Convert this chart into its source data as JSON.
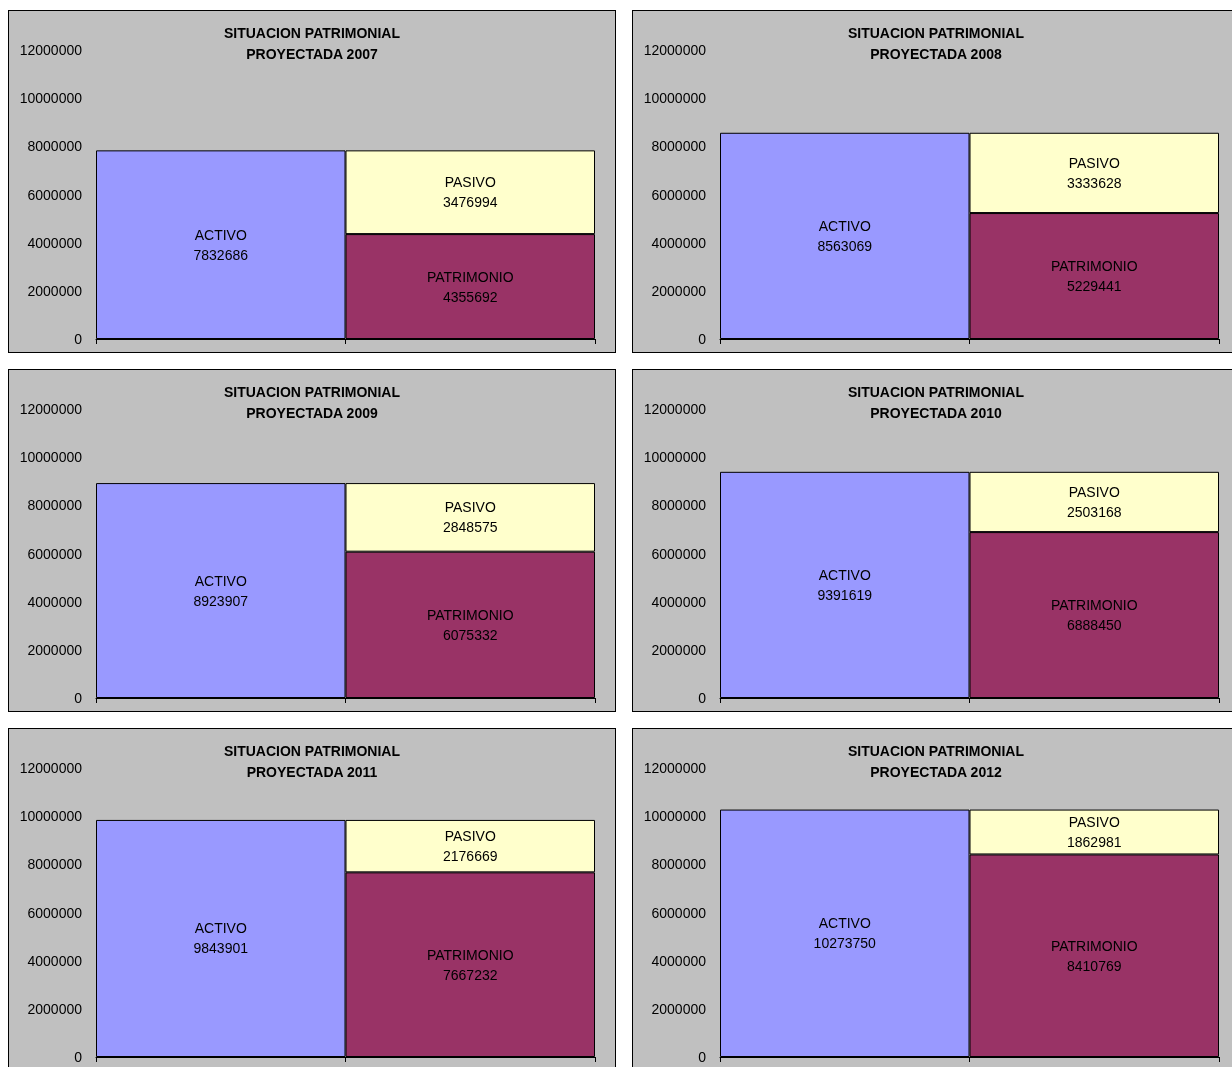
{
  "chart_data": [
    {
      "type": "bar",
      "title": "SITUACION PATRIMONIAL\nPROYECTADA 2007",
      "categories": [
        null,
        null
      ],
      "stacked": true,
      "data_labels": true,
      "grid": false,
      "legend": false,
      "ylim": [
        0,
        12000000
      ],
      "yticks": [
        0,
        2000000,
        4000000,
        6000000,
        8000000,
        10000000,
        12000000
      ],
      "series": [
        {
          "name": "ACTIVO",
          "color": "#9999ff",
          "values": [
            7832686,
            null
          ]
        },
        {
          "name": "PATRIMONIO",
          "color": "#993366",
          "values": [
            null,
            4355692
          ]
        },
        {
          "name": "PASIVO",
          "color": "#ffffcc",
          "values": [
            null,
            3476994
          ]
        }
      ]
    },
    {
      "type": "bar",
      "title": "SITUACION PATRIMONIAL\nPROYECTADA 2008",
      "categories": [
        null,
        null
      ],
      "stacked": true,
      "data_labels": true,
      "grid": false,
      "legend": false,
      "ylim": [
        0,
        12000000
      ],
      "yticks": [
        0,
        2000000,
        4000000,
        6000000,
        8000000,
        10000000,
        12000000
      ],
      "series": [
        {
          "name": "ACTIVO",
          "color": "#9999ff",
          "values": [
            8563069,
            null
          ]
        },
        {
          "name": "PATRIMONIO",
          "color": "#993366",
          "values": [
            null,
            5229441
          ]
        },
        {
          "name": "PASIVO",
          "color": "#ffffcc",
          "values": [
            null,
            3333628
          ]
        }
      ]
    },
    {
      "type": "bar",
      "title": "SITUACION PATRIMONIAL\nPROYECTADA 2009",
      "categories": [
        null,
        null
      ],
      "stacked": true,
      "data_labels": true,
      "grid": false,
      "legend": false,
      "ylim": [
        0,
        12000000
      ],
      "yticks": [
        0,
        2000000,
        4000000,
        6000000,
        8000000,
        10000000,
        12000000
      ],
      "series": [
        {
          "name": "ACTIVO",
          "color": "#9999ff",
          "values": [
            8923907,
            null
          ]
        },
        {
          "name": "PATRIMONIO",
          "color": "#993366",
          "values": [
            null,
            6075332
          ]
        },
        {
          "name": "PASIVO",
          "color": "#ffffcc",
          "values": [
            null,
            2848575
          ]
        }
      ]
    },
    {
      "type": "bar",
      "title": "SITUACION PATRIMONIAL\nPROYECTADA 2010",
      "categories": [
        null,
        null
      ],
      "stacked": true,
      "data_labels": true,
      "grid": false,
      "legend": false,
      "ylim": [
        0,
        12000000
      ],
      "yticks": [
        0,
        2000000,
        4000000,
        6000000,
        8000000,
        10000000,
        12000000
      ],
      "series": [
        {
          "name": "ACTIVO",
          "color": "#9999ff",
          "values": [
            9391619,
            null
          ]
        },
        {
          "name": "PATRIMONIO",
          "color": "#993366",
          "values": [
            null,
            6888450
          ]
        },
        {
          "name": "PASIVO",
          "color": "#ffffcc",
          "values": [
            null,
            2503168
          ]
        }
      ]
    },
    {
      "type": "bar",
      "title": "SITUACION PATRIMONIAL\nPROYECTADA 2011",
      "categories": [
        null,
        null
      ],
      "stacked": true,
      "data_labels": true,
      "grid": false,
      "legend": false,
      "ylim": [
        0,
        12000000
      ],
      "yticks": [
        0,
        2000000,
        4000000,
        6000000,
        8000000,
        10000000,
        12000000
      ],
      "series": [
        {
          "name": "ACTIVO",
          "color": "#9999ff",
          "values": [
            9843901,
            null
          ]
        },
        {
          "name": "PATRIMONIO",
          "color": "#993366",
          "values": [
            null,
            7667232
          ]
        },
        {
          "name": "PASIVO",
          "color": "#ffffcc",
          "values": [
            null,
            2176669
          ]
        }
      ]
    },
    {
      "type": "bar",
      "title": "SITUACION PATRIMONIAL\nPROYECTADA 2012",
      "categories": [
        null,
        null
      ],
      "stacked": true,
      "data_labels": true,
      "grid": false,
      "legend": false,
      "ylim": [
        0,
        12000000
      ],
      "yticks": [
        0,
        2000000,
        4000000,
        6000000,
        8000000,
        10000000,
        12000000
      ],
      "series": [
        {
          "name": "ACTIVO",
          "color": "#9999ff",
          "values": [
            10273750,
            null
          ]
        },
        {
          "name": "PATRIMONIO",
          "color": "#993366",
          "values": [
            null,
            8410769
          ]
        },
        {
          "name": "PASIVO",
          "color": "#ffffcc",
          "values": [
            null,
            1862981
          ]
        }
      ]
    }
  ]
}
